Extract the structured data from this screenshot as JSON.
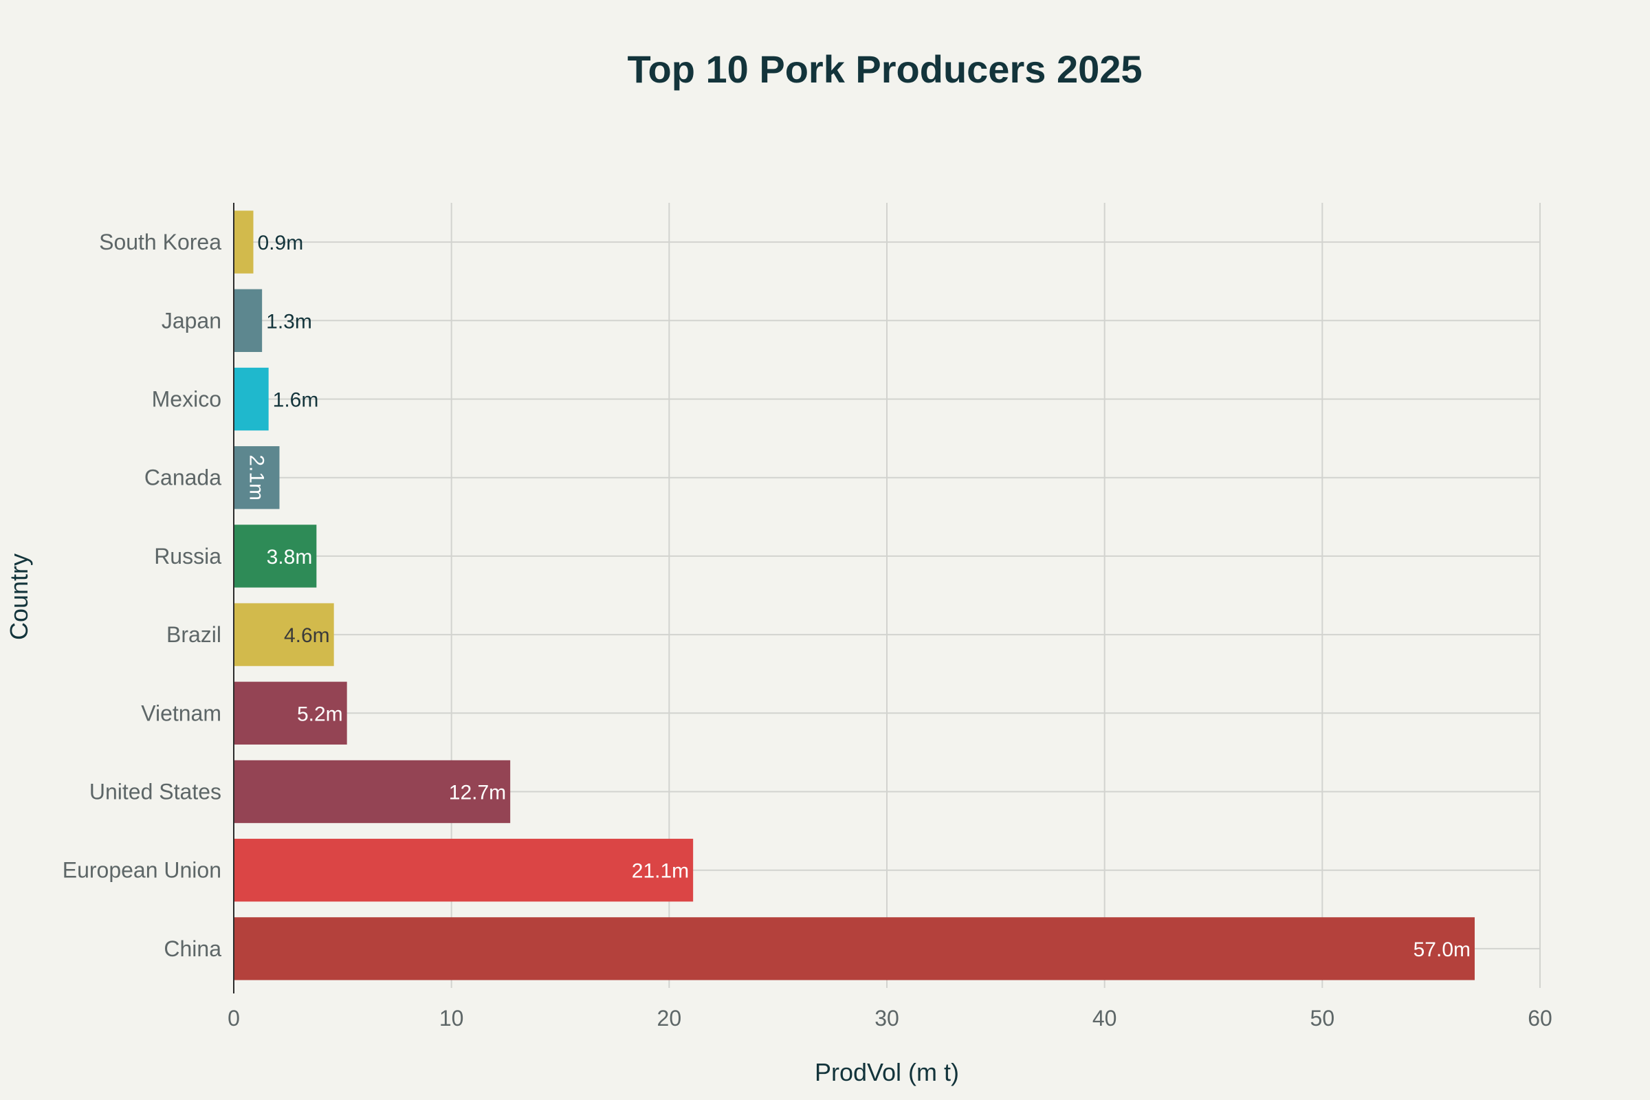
{
  "chart_data": {
    "type": "bar",
    "orientation": "horizontal",
    "title": "Top 10 Pork Producers 2025",
    "xlabel": "ProdVol (m t)",
    "ylabel": "Country",
    "xlim": [
      0,
      60
    ],
    "xticks": [
      0,
      10,
      20,
      30,
      40,
      50,
      60
    ],
    "grid": true,
    "categories": [
      "South Korea",
      "Japan",
      "Mexico",
      "Canada",
      "Russia",
      "Brazil",
      "Vietnam",
      "United States",
      "European Union",
      "China"
    ],
    "values": [
      0.9,
      1.3,
      1.6,
      2.1,
      3.8,
      4.6,
      5.2,
      12.7,
      21.1,
      57.0
    ],
    "labels": [
      "0.9m",
      "1.3m",
      "1.6m",
      "2.1m",
      "3.8m",
      "4.6m",
      "5.2m",
      "12.7m",
      "21.1m",
      "57.0m"
    ],
    "colors": [
      "#d2ba4c",
      "#5d878f",
      "#1fb8cd",
      "#5d878f",
      "#2e8b57",
      "#d2ba4c",
      "#944454",
      "#944454",
      "#db4545",
      "#b4413c"
    ]
  }
}
